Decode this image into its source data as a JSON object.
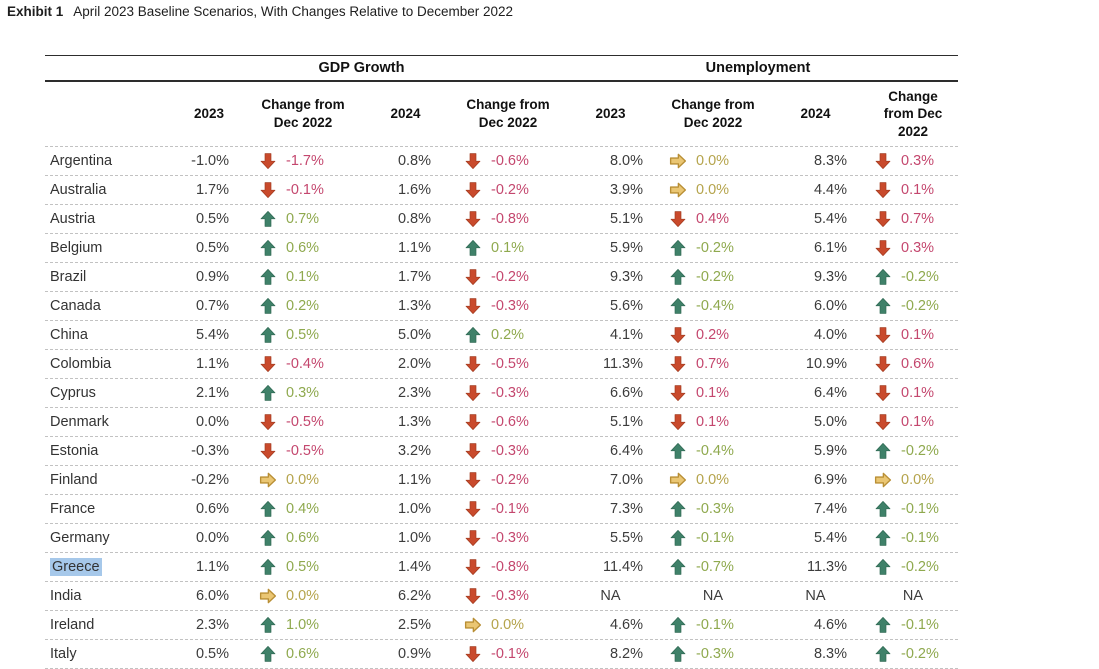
{
  "title": {
    "label": "Exhibit 1",
    "text": "April 2023 Baseline Scenarios, With Changes Relative to December 2022"
  },
  "colors": {
    "down_arrow": "#c94a2c",
    "down_arrow_stroke": "#a23a1e",
    "up_arrow": "#3f8169",
    "up_arrow_stroke": "#2e6852",
    "flat_arrow": "#eac673",
    "flat_arrow_stroke": "#b98f35",
    "down_text": "#c4476e",
    "up_text": "#8fa94e",
    "flat_text": "#b5a44c",
    "selection_highlight": "#a6c8ea"
  },
  "table": {
    "groups": [
      {
        "label": "GDP Growth"
      },
      {
        "label": "Unemployment"
      }
    ],
    "subheaders": [
      "2023",
      "Change from Dec 2022",
      "2024",
      "Change from Dec 2022",
      "2023",
      "Change from Dec 2022",
      "2024",
      "Change from Dec 2022"
    ],
    "rows": [
      {
        "country": "Argentina",
        "highlight": false,
        "cells": [
          {
            "value": "-1.0%"
          },
          {
            "dir": "down",
            "change": "-1.7%"
          },
          {
            "value": "0.8%"
          },
          {
            "dir": "down",
            "change": "-0.6%"
          },
          {
            "value": "8.0%"
          },
          {
            "dir": "flat",
            "change": "0.0%"
          },
          {
            "value": "8.3%"
          },
          {
            "dir": "down",
            "change": "0.3%"
          }
        ]
      },
      {
        "country": "Australia",
        "highlight": false,
        "cells": [
          {
            "value": "1.7%"
          },
          {
            "dir": "down",
            "change": "-0.1%"
          },
          {
            "value": "1.6%"
          },
          {
            "dir": "down",
            "change": "-0.2%"
          },
          {
            "value": "3.9%"
          },
          {
            "dir": "flat",
            "change": "0.0%"
          },
          {
            "value": "4.4%"
          },
          {
            "dir": "down",
            "change": "0.1%"
          }
        ]
      },
      {
        "country": "Austria",
        "highlight": false,
        "cells": [
          {
            "value": "0.5%"
          },
          {
            "dir": "up",
            "change": "0.7%"
          },
          {
            "value": "0.8%"
          },
          {
            "dir": "down",
            "change": "-0.8%"
          },
          {
            "value": "5.1%"
          },
          {
            "dir": "down",
            "change": "0.4%"
          },
          {
            "value": "5.4%"
          },
          {
            "dir": "down",
            "change": "0.7%"
          }
        ]
      },
      {
        "country": "Belgium",
        "highlight": false,
        "cells": [
          {
            "value": "0.5%"
          },
          {
            "dir": "up",
            "change": "0.6%"
          },
          {
            "value": "1.1%"
          },
          {
            "dir": "up",
            "change": "0.1%"
          },
          {
            "value": "5.9%"
          },
          {
            "dir": "up",
            "change": "-0.2%"
          },
          {
            "value": "6.1%"
          },
          {
            "dir": "down",
            "change": "0.3%"
          }
        ]
      },
      {
        "country": "Brazil",
        "highlight": false,
        "cells": [
          {
            "value": "0.9%"
          },
          {
            "dir": "up",
            "change": "0.1%"
          },
          {
            "value": "1.7%"
          },
          {
            "dir": "down",
            "change": "-0.2%"
          },
          {
            "value": "9.3%"
          },
          {
            "dir": "up",
            "change": "-0.2%"
          },
          {
            "value": "9.3%"
          },
          {
            "dir": "up",
            "change": "-0.2%"
          }
        ]
      },
      {
        "country": "Canada",
        "highlight": false,
        "cells": [
          {
            "value": "0.7%"
          },
          {
            "dir": "up",
            "change": "0.2%"
          },
          {
            "value": "1.3%"
          },
          {
            "dir": "down",
            "change": "-0.3%"
          },
          {
            "value": "5.6%"
          },
          {
            "dir": "up",
            "change": "-0.4%"
          },
          {
            "value": "6.0%"
          },
          {
            "dir": "up",
            "change": "-0.2%"
          }
        ]
      },
      {
        "country": "China",
        "highlight": false,
        "cells": [
          {
            "value": "5.4%"
          },
          {
            "dir": "up",
            "change": "0.5%"
          },
          {
            "value": "5.0%"
          },
          {
            "dir": "up",
            "change": "0.2%"
          },
          {
            "value": "4.1%"
          },
          {
            "dir": "down",
            "change": "0.2%"
          },
          {
            "value": "4.0%"
          },
          {
            "dir": "down",
            "change": "0.1%"
          }
        ]
      },
      {
        "country": "Colombia",
        "highlight": false,
        "cells": [
          {
            "value": "1.1%"
          },
          {
            "dir": "down",
            "change": "-0.4%"
          },
          {
            "value": "2.0%"
          },
          {
            "dir": "down",
            "change": "-0.5%"
          },
          {
            "value": "11.3%"
          },
          {
            "dir": "down",
            "change": "0.7%"
          },
          {
            "value": "10.9%"
          },
          {
            "dir": "down",
            "change": "0.6%"
          }
        ]
      },
      {
        "country": "Cyprus",
        "highlight": false,
        "cells": [
          {
            "value": "2.1%"
          },
          {
            "dir": "up",
            "change": "0.3%"
          },
          {
            "value": "2.3%"
          },
          {
            "dir": "down",
            "change": "-0.3%"
          },
          {
            "value": "6.6%"
          },
          {
            "dir": "down",
            "change": "0.1%"
          },
          {
            "value": "6.4%"
          },
          {
            "dir": "down",
            "change": "0.1%"
          }
        ]
      },
      {
        "country": "Denmark",
        "highlight": false,
        "cells": [
          {
            "value": "0.0%"
          },
          {
            "dir": "down",
            "change": "-0.5%"
          },
          {
            "value": "1.3%"
          },
          {
            "dir": "down",
            "change": "-0.6%"
          },
          {
            "value": "5.1%"
          },
          {
            "dir": "down",
            "change": "0.1%"
          },
          {
            "value": "5.0%"
          },
          {
            "dir": "down",
            "change": "0.1%"
          }
        ]
      },
      {
        "country": "Estonia",
        "highlight": false,
        "cells": [
          {
            "value": "-0.3%"
          },
          {
            "dir": "down",
            "change": "-0.5%"
          },
          {
            "value": "3.2%"
          },
          {
            "dir": "down",
            "change": "-0.3%"
          },
          {
            "value": "6.4%"
          },
          {
            "dir": "up",
            "change": "-0.4%"
          },
          {
            "value": "5.9%"
          },
          {
            "dir": "up",
            "change": "-0.2%"
          }
        ]
      },
      {
        "country": "Finland",
        "highlight": false,
        "cells": [
          {
            "value": "-0.2%"
          },
          {
            "dir": "flat",
            "change": "0.0%"
          },
          {
            "value": "1.1%"
          },
          {
            "dir": "down",
            "change": "-0.2%"
          },
          {
            "value": "7.0%"
          },
          {
            "dir": "flat",
            "change": "0.0%"
          },
          {
            "value": "6.9%"
          },
          {
            "dir": "flat",
            "change": "0.0%"
          }
        ]
      },
      {
        "country": "France",
        "highlight": false,
        "cells": [
          {
            "value": "0.6%"
          },
          {
            "dir": "up",
            "change": "0.4%"
          },
          {
            "value": "1.0%"
          },
          {
            "dir": "down",
            "change": "-0.1%"
          },
          {
            "value": "7.3%"
          },
          {
            "dir": "up",
            "change": "-0.3%"
          },
          {
            "value": "7.4%"
          },
          {
            "dir": "up",
            "change": "-0.1%"
          }
        ]
      },
      {
        "country": "Germany",
        "highlight": false,
        "cells": [
          {
            "value": "0.0%"
          },
          {
            "dir": "up",
            "change": "0.6%"
          },
          {
            "value": "1.0%"
          },
          {
            "dir": "down",
            "change": "-0.3%"
          },
          {
            "value": "5.5%"
          },
          {
            "dir": "up",
            "change": "-0.1%"
          },
          {
            "value": "5.4%"
          },
          {
            "dir": "up",
            "change": "-0.1%"
          }
        ]
      },
      {
        "country": "Greece",
        "highlight": true,
        "cells": [
          {
            "value": "1.1%"
          },
          {
            "dir": "up",
            "change": "0.5%"
          },
          {
            "value": "1.4%"
          },
          {
            "dir": "down",
            "change": "-0.8%"
          },
          {
            "value": "11.4%"
          },
          {
            "dir": "up",
            "change": "-0.7%"
          },
          {
            "value": "11.3%"
          },
          {
            "dir": "up",
            "change": "-0.2%"
          }
        ]
      },
      {
        "country": "India",
        "highlight": false,
        "cells": [
          {
            "value": "6.0%"
          },
          {
            "dir": "flat",
            "change": "0.0%"
          },
          {
            "value": "6.2%"
          },
          {
            "dir": "down",
            "change": "-0.3%"
          },
          {
            "value": "NA"
          },
          {
            "dir": null,
            "change": "NA"
          },
          {
            "value": "NA"
          },
          {
            "dir": null,
            "change": "NA"
          }
        ]
      },
      {
        "country": "Ireland",
        "highlight": false,
        "cells": [
          {
            "value": "2.3%"
          },
          {
            "dir": "up",
            "change": "1.0%"
          },
          {
            "value": "2.5%"
          },
          {
            "dir": "flat",
            "change": "0.0%"
          },
          {
            "value": "4.6%"
          },
          {
            "dir": "up",
            "change": "-0.1%"
          },
          {
            "value": "4.6%"
          },
          {
            "dir": "up",
            "change": "-0.1%"
          }
        ]
      },
      {
        "country": "Italy",
        "highlight": false,
        "cells": [
          {
            "value": "0.5%"
          },
          {
            "dir": "up",
            "change": "0.6%"
          },
          {
            "value": "0.9%"
          },
          {
            "dir": "down",
            "change": "-0.1%"
          },
          {
            "value": "8.2%"
          },
          {
            "dir": "up",
            "change": "-0.3%"
          },
          {
            "value": "8.3%"
          },
          {
            "dir": "up",
            "change": "-0.2%"
          }
        ]
      }
    ]
  }
}
